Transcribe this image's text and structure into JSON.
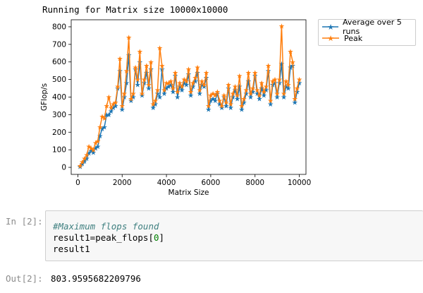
{
  "stdout_line": "Running for Matrix size 10000x10000",
  "code_cell": {
    "prompt": "In [2]:",
    "line1": "#Maximum flops found",
    "line2_prefix": "result1=peak_flops[",
    "line2_index": "0",
    "line2_suffix": "]",
    "line3": "result1"
  },
  "output_cell": {
    "prompt": "Out[2]:",
    "value": "803.9595682209796"
  },
  "chart_data": {
    "type": "line",
    "xlabel": "Matrix Size",
    "ylabel": "GFlop/s",
    "xlim": [
      -300,
      10300
    ],
    "ylim": [
      -40,
      840
    ],
    "xticks": [
      0,
      2000,
      4000,
      6000,
      8000,
      10000
    ],
    "yticks": [
      0,
      100,
      200,
      300,
      400,
      500,
      600,
      700,
      800
    ],
    "legend_position": "outside-top-right",
    "series": [
      {
        "name": "Average over 5 runs",
        "color": "#1f77b4",
        "marker": "star",
        "points": [
          [
            100,
            5
          ],
          [
            200,
            20
          ],
          [
            300,
            35
          ],
          [
            400,
            50
          ],
          [
            500,
            80
          ],
          [
            600,
            95
          ],
          [
            700,
            85
          ],
          [
            800,
            110
          ],
          [
            900,
            120
          ],
          [
            1000,
            180
          ],
          [
            1100,
            220
          ],
          [
            1200,
            230
          ],
          [
            1300,
            300
          ],
          [
            1400,
            300
          ],
          [
            1500,
            320
          ],
          [
            1600,
            340
          ],
          [
            1700,
            350
          ],
          [
            1800,
            450
          ],
          [
            1900,
            550
          ],
          [
            2000,
            330
          ],
          [
            2100,
            400
          ],
          [
            2200,
            480
          ],
          [
            2300,
            640
          ],
          [
            2400,
            380
          ],
          [
            2500,
            400
          ],
          [
            2600,
            560
          ],
          [
            2700,
            470
          ],
          [
            2800,
            600
          ],
          [
            2900,
            410
          ],
          [
            3000,
            480
          ],
          [
            3100,
            540
          ],
          [
            3200,
            450
          ],
          [
            3300,
            560
          ],
          [
            3400,
            340
          ],
          [
            3500,
            360
          ],
          [
            3600,
            420
          ],
          [
            3700,
            400
          ],
          [
            3800,
            560
          ],
          [
            3900,
            420
          ],
          [
            4000,
            450
          ],
          [
            4100,
            460
          ],
          [
            4200,
            470
          ],
          [
            4300,
            430
          ],
          [
            4400,
            520
          ],
          [
            4500,
            400
          ],
          [
            4600,
            460
          ],
          [
            4700,
            440
          ],
          [
            4800,
            480
          ],
          [
            4900,
            470
          ],
          [
            5000,
            530
          ],
          [
            5100,
            410
          ],
          [
            5200,
            460
          ],
          [
            5300,
            490
          ],
          [
            5400,
            540
          ],
          [
            5500,
            420
          ],
          [
            5600,
            470
          ],
          [
            5700,
            460
          ],
          [
            5800,
            510
          ],
          [
            5900,
            330
          ],
          [
            6000,
            380
          ],
          [
            6100,
            390
          ],
          [
            6200,
            380
          ],
          [
            6300,
            420
          ],
          [
            6400,
            360
          ],
          [
            6500,
            340
          ],
          [
            6600,
            400
          ],
          [
            6700,
            350
          ],
          [
            6800,
            450
          ],
          [
            6900,
            340
          ],
          [
            7000,
            400
          ],
          [
            7100,
            440
          ],
          [
            7200,
            390
          ],
          [
            7300,
            460
          ],
          [
            7400,
            330
          ],
          [
            7500,
            370
          ],
          [
            7600,
            420
          ],
          [
            7700,
            490
          ],
          [
            7800,
            400
          ],
          [
            7900,
            430
          ],
          [
            8000,
            520
          ],
          [
            8100,
            420
          ],
          [
            8200,
            390
          ],
          [
            8300,
            450
          ],
          [
            8400,
            410
          ],
          [
            8500,
            440
          ],
          [
            8600,
            550
          ],
          [
            8700,
            360
          ],
          [
            8800,
            470
          ],
          [
            8900,
            480
          ],
          [
            9000,
            400
          ],
          [
            9100,
            480
          ],
          [
            9200,
            590
          ],
          [
            9300,
            400
          ],
          [
            9400,
            460
          ],
          [
            9500,
            450
          ],
          [
            9600,
            570
          ],
          [
            9700,
            580
          ],
          [
            9800,
            370
          ],
          [
            9900,
            430
          ],
          [
            10000,
            480
          ]
        ]
      },
      {
        "name": "Peak",
        "color": "#ff7f0e",
        "marker": "star",
        "points": [
          [
            100,
            8
          ],
          [
            200,
            30
          ],
          [
            300,
            50
          ],
          [
            400,
            70
          ],
          [
            500,
            120
          ],
          [
            600,
            110
          ],
          [
            700,
            100
          ],
          [
            800,
            140
          ],
          [
            900,
            150
          ],
          [
            1000,
            230
          ],
          [
            1100,
            290
          ],
          [
            1200,
            280
          ],
          [
            1300,
            350
          ],
          [
            1400,
            400
          ],
          [
            1500,
            340
          ],
          [
            1600,
            360
          ],
          [
            1700,
            370
          ],
          [
            1800,
            460
          ],
          [
            1900,
            620
          ],
          [
            2000,
            350
          ],
          [
            2100,
            420
          ],
          [
            2200,
            550
          ],
          [
            2300,
            740
          ],
          [
            2400,
            390
          ],
          [
            2500,
            420
          ],
          [
            2600,
            570
          ],
          [
            2700,
            500
          ],
          [
            2800,
            660
          ],
          [
            2900,
            420
          ],
          [
            3000,
            500
          ],
          [
            3100,
            580
          ],
          [
            3200,
            470
          ],
          [
            3300,
            600
          ],
          [
            3400,
            360
          ],
          [
            3500,
            380
          ],
          [
            3600,
            440
          ],
          [
            3700,
            680
          ],
          [
            3800,
            580
          ],
          [
            3900,
            440
          ],
          [
            4000,
            480
          ],
          [
            4100,
            480
          ],
          [
            4200,
            490
          ],
          [
            4300,
            450
          ],
          [
            4400,
            540
          ],
          [
            4500,
            430
          ],
          [
            4600,
            480
          ],
          [
            4700,
            460
          ],
          [
            4800,
            500
          ],
          [
            4900,
            490
          ],
          [
            5000,
            560
          ],
          [
            5100,
            430
          ],
          [
            5200,
            480
          ],
          [
            5300,
            510
          ],
          [
            5400,
            570
          ],
          [
            5500,
            440
          ],
          [
            5600,
            490
          ],
          [
            5700,
            470
          ],
          [
            5800,
            540
          ],
          [
            5900,
            350
          ],
          [
            6000,
            410
          ],
          [
            6100,
            420
          ],
          [
            6200,
            410
          ],
          [
            6300,
            430
          ],
          [
            6400,
            380
          ],
          [
            6500,
            350
          ],
          [
            6600,
            410
          ],
          [
            6700,
            370
          ],
          [
            6800,
            470
          ],
          [
            6900,
            360
          ],
          [
            7000,
            420
          ],
          [
            7100,
            460
          ],
          [
            7200,
            410
          ],
          [
            7300,
            520
          ],
          [
            7400,
            350
          ],
          [
            7500,
            390
          ],
          [
            7600,
            440
          ],
          [
            7700,
            540
          ],
          [
            7800,
            420
          ],
          [
            7900,
            450
          ],
          [
            8000,
            540
          ],
          [
            8100,
            440
          ],
          [
            8200,
            410
          ],
          [
            8300,
            480
          ],
          [
            8400,
            430
          ],
          [
            8500,
            460
          ],
          [
            8600,
            580
          ],
          [
            8700,
            380
          ],
          [
            8800,
            490
          ],
          [
            8900,
            500
          ],
          [
            9000,
            420
          ],
          [
            9100,
            500
          ],
          [
            9200,
            805
          ],
          [
            9300,
            420
          ],
          [
            9400,
            490
          ],
          [
            9500,
            470
          ],
          [
            9600,
            660
          ],
          [
            9700,
            600
          ],
          [
            9800,
            390
          ],
          [
            9900,
            450
          ],
          [
            10000,
            500
          ]
        ]
      }
    ]
  }
}
